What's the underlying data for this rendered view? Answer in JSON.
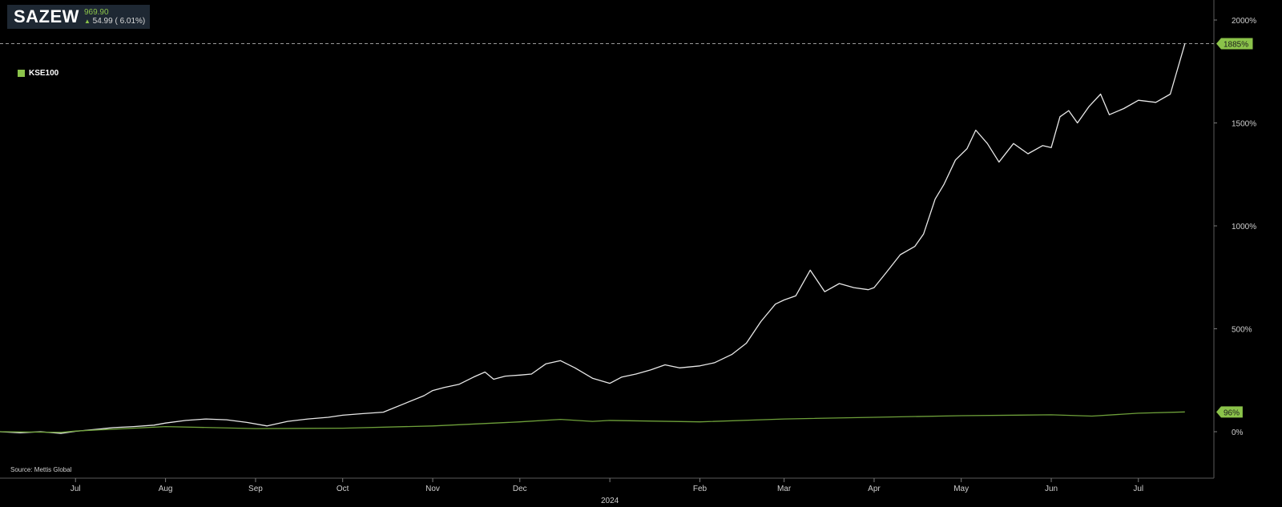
{
  "header": {
    "symbol": "SAZEW",
    "price": "969.90",
    "change": "54.99 ( 6.01%)",
    "change_icon": "up-arrow-icon"
  },
  "legend": {
    "items": [
      {
        "label": "KSE100",
        "color": "#8bc34a"
      }
    ]
  },
  "source": "Source: Mettis Global",
  "chart_data": {
    "type": "line",
    "xlabel": "",
    "ylabel": "",
    "y_unit": "%",
    "ylim": [
      -230,
      2020
    ],
    "y_ticks": [
      {
        "value": 2000,
        "label": "2000%"
      },
      {
        "value": 1500,
        "label": "1500%"
      },
      {
        "value": 1000,
        "label": "1000%"
      },
      {
        "value": 500,
        "label": "500%"
      },
      {
        "value": 0,
        "label": "0%"
      }
    ],
    "x_range": [
      "2023-06-05",
      "2024-07-27"
    ],
    "x_ticks": [
      {
        "date": "2023-07-01",
        "label": "Jul"
      },
      {
        "date": "2023-08-01",
        "label": "Aug"
      },
      {
        "date": "2023-09-01",
        "label": "Sep"
      },
      {
        "date": "2023-10-01",
        "label": "Oct"
      },
      {
        "date": "2023-11-01",
        "label": "Nov"
      },
      {
        "date": "2023-12-01",
        "label": "Dec"
      },
      {
        "date": "2024-01-01",
        "label": "",
        "year_label": "2024"
      },
      {
        "date": "2024-02-01",
        "label": "Feb"
      },
      {
        "date": "2024-03-01",
        "label": "Mar"
      },
      {
        "date": "2024-04-01",
        "label": "Apr"
      },
      {
        "date": "2024-05-01",
        "label": "May"
      },
      {
        "date": "2024-06-01",
        "label": "Jun"
      },
      {
        "date": "2024-07-01",
        "label": "Jul"
      }
    ],
    "reference_line": {
      "value": 1885,
      "style": "dashed"
    },
    "last_value_tags": [
      {
        "series": "SAZEW",
        "value": 1885,
        "label": "1885%",
        "color": "#8bc34a"
      },
      {
        "series": "KSE100",
        "value": 96,
        "label": "96%",
        "color": "#8bc34a"
      }
    ],
    "series": [
      {
        "name": "SAZEW",
        "color": "#e8e8e8",
        "points": [
          [
            "2023-06-05",
            0
          ],
          [
            "2023-06-12",
            -5
          ],
          [
            "2023-06-19",
            0
          ],
          [
            "2023-06-26",
            -8
          ],
          [
            "2023-07-01",
            2
          ],
          [
            "2023-07-07",
            10
          ],
          [
            "2023-07-14",
            20
          ],
          [
            "2023-07-21",
            25
          ],
          [
            "2023-07-28",
            32
          ],
          [
            "2023-08-01",
            42
          ],
          [
            "2023-08-08",
            55
          ],
          [
            "2023-08-15",
            62
          ],
          [
            "2023-08-22",
            58
          ],
          [
            "2023-08-29",
            45
          ],
          [
            "2023-09-05",
            28
          ],
          [
            "2023-09-12",
            50
          ],
          [
            "2023-09-19",
            62
          ],
          [
            "2023-09-26",
            70
          ],
          [
            "2023-10-01",
            80
          ],
          [
            "2023-10-08",
            88
          ],
          [
            "2023-10-15",
            95
          ],
          [
            "2023-10-22",
            135
          ],
          [
            "2023-10-29",
            175
          ],
          [
            "2023-11-01",
            200
          ],
          [
            "2023-11-05",
            215
          ],
          [
            "2023-11-10",
            230
          ],
          [
            "2023-11-15",
            265
          ],
          [
            "2023-11-19",
            290
          ],
          [
            "2023-11-22",
            255
          ],
          [
            "2023-11-26",
            270
          ],
          [
            "2023-12-01",
            275
          ],
          [
            "2023-12-05",
            280
          ],
          [
            "2023-12-10",
            330
          ],
          [
            "2023-12-15",
            345
          ],
          [
            "2023-12-20",
            310
          ],
          [
            "2023-12-26",
            260
          ],
          [
            "2024-01-01",
            235
          ],
          [
            "2024-01-05",
            265
          ],
          [
            "2024-01-10",
            280
          ],
          [
            "2024-01-15",
            300
          ],
          [
            "2024-01-20",
            325
          ],
          [
            "2024-01-25",
            310
          ],
          [
            "2024-02-01",
            320
          ],
          [
            "2024-02-06",
            335
          ],
          [
            "2024-02-12",
            375
          ],
          [
            "2024-02-17",
            430
          ],
          [
            "2024-02-22",
            535
          ],
          [
            "2024-02-27",
            620
          ],
          [
            "2024-03-01",
            640
          ],
          [
            "2024-03-05",
            660
          ],
          [
            "2024-03-10",
            785
          ],
          [
            "2024-03-15",
            680
          ],
          [
            "2024-03-20",
            720
          ],
          [
            "2024-03-25",
            700
          ],
          [
            "2024-03-30",
            690
          ],
          [
            "2024-04-01",
            700
          ],
          [
            "2024-04-05",
            770
          ],
          [
            "2024-04-10",
            860
          ],
          [
            "2024-04-15",
            900
          ],
          [
            "2024-04-18",
            960
          ],
          [
            "2024-04-22",
            1130
          ],
          [
            "2024-04-25",
            1200
          ],
          [
            "2024-04-29",
            1320
          ],
          [
            "2024-05-03",
            1375
          ],
          [
            "2024-05-06",
            1465
          ],
          [
            "2024-05-10",
            1400
          ],
          [
            "2024-05-14",
            1310
          ],
          [
            "2024-05-19",
            1400
          ],
          [
            "2024-05-24",
            1350
          ],
          [
            "2024-05-29",
            1390
          ],
          [
            "2024-06-01",
            1380
          ],
          [
            "2024-06-04",
            1530
          ],
          [
            "2024-06-07",
            1560
          ],
          [
            "2024-06-10",
            1500
          ],
          [
            "2024-06-14",
            1580
          ],
          [
            "2024-06-18",
            1640
          ],
          [
            "2024-06-21",
            1540
          ],
          [
            "2024-06-26",
            1570
          ],
          [
            "2024-07-01",
            1610
          ],
          [
            "2024-07-07",
            1600
          ],
          [
            "2024-07-12",
            1640
          ],
          [
            "2024-07-17",
            1885
          ]
        ]
      },
      {
        "name": "KSE100",
        "color": "#6ea03a",
        "points": [
          [
            "2023-06-05",
            0
          ],
          [
            "2023-06-26",
            -3
          ],
          [
            "2023-07-01",
            3
          ],
          [
            "2023-08-01",
            25
          ],
          [
            "2023-09-01",
            15
          ],
          [
            "2023-10-01",
            17
          ],
          [
            "2023-11-01",
            28
          ],
          [
            "2023-12-01",
            48
          ],
          [
            "2023-12-15",
            60
          ],
          [
            "2023-12-26",
            50
          ],
          [
            "2024-01-01",
            55
          ],
          [
            "2024-02-01",
            48
          ],
          [
            "2024-03-01",
            62
          ],
          [
            "2024-04-01",
            70
          ],
          [
            "2024-05-01",
            78
          ],
          [
            "2024-06-01",
            82
          ],
          [
            "2024-06-15",
            76
          ],
          [
            "2024-07-01",
            90
          ],
          [
            "2024-07-17",
            96
          ]
        ]
      }
    ]
  }
}
